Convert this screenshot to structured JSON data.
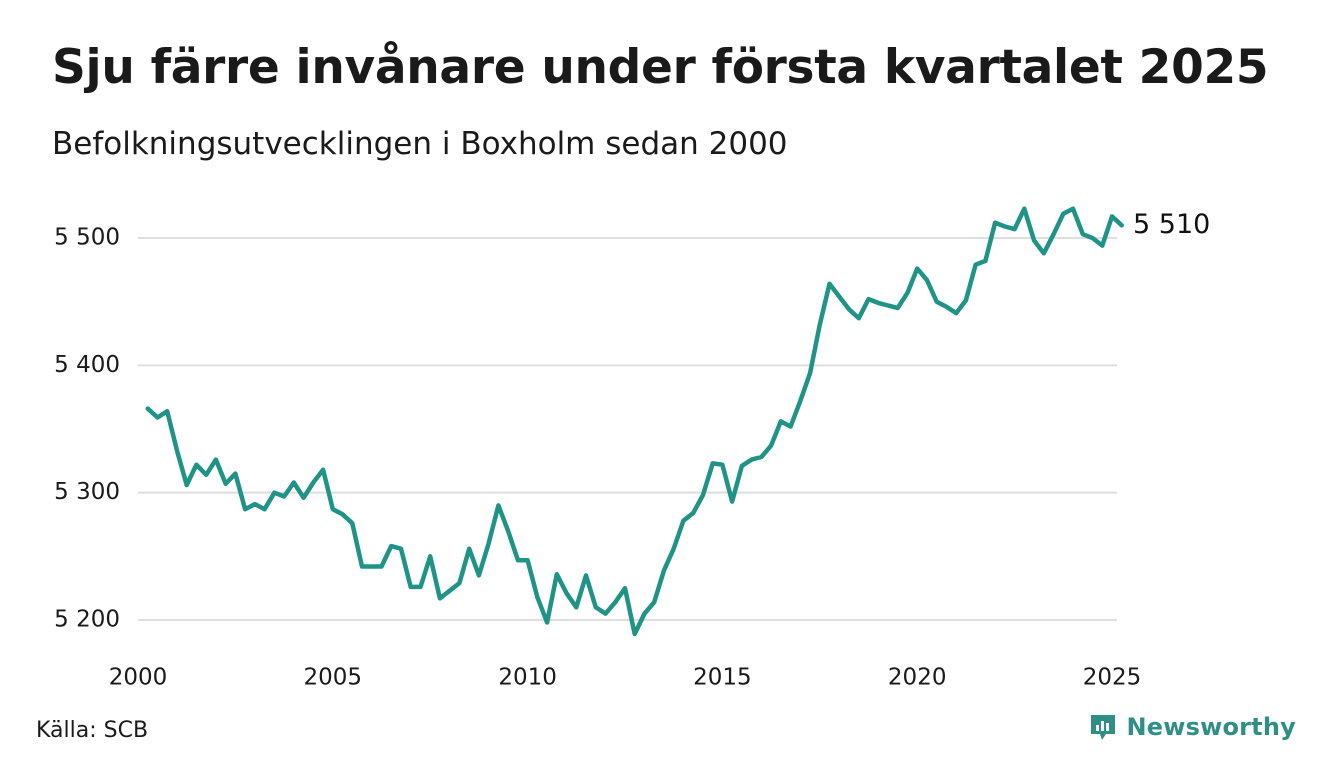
{
  "header": {
    "title": "Sju färre invånare under första kvartalet 2025",
    "subtitle": "Befolkningsutvecklingen i Boxholm sedan 2000"
  },
  "footer": {
    "source": "Källa: SCB",
    "brand": "Newsworthy"
  },
  "colors": {
    "line": "#1f9486",
    "grid": "#dedede",
    "brand": "#2f8f85"
  },
  "chart_data": {
    "type": "line",
    "title": "Sju färre invånare under första kvartalet 2025",
    "subtitle": "Befolkningsutvecklingen i Boxholm sedan 2000",
    "xlabel": "",
    "ylabel": "",
    "xlim": [
      2000,
      2025
    ],
    "ylim": [
      5180,
      5530
    ],
    "grid": true,
    "x_ticks": [
      2000,
      2005,
      2010,
      2015,
      2020,
      2025
    ],
    "x_tick_labels": [
      "2000",
      "2005",
      "2010",
      "2015",
      "2020",
      "2025"
    ],
    "y_ticks": [
      5200,
      5300,
      5400,
      5500
    ],
    "y_tick_labels": [
      "5 200",
      "5 300",
      "5 400",
      "5 500"
    ],
    "end_label": "5 510",
    "series": [
      {
        "x": [
          2000.25,
          2000.5,
          2000.75,
          2001,
          2001.25,
          2001.5,
          2001.75,
          2002,
          2002.25,
          2002.5,
          2002.75,
          2003,
          2003.25,
          2003.5,
          2003.75,
          2004,
          2004.25,
          2004.5,
          2004.75,
          2005,
          2005.25,
          2005.5,
          2005.75,
          2006,
          2006.25,
          2006.5,
          2006.75,
          2007,
          2007.25,
          2007.5,
          2007.75,
          2008,
          2008.25,
          2008.5,
          2008.75,
          2009,
          2009.25,
          2009.5,
          2009.75,
          2010,
          2010.25,
          2010.5,
          2010.75,
          2011,
          2011.25,
          2011.5,
          2011.75,
          2012,
          2012.25,
          2012.5,
          2012.75,
          2013,
          2013.25,
          2013.5,
          2013.75,
          2014,
          2014.25,
          2014.5,
          2014.75,
          2015,
          2015.25,
          2015.5,
          2015.75,
          2016,
          2016.25,
          2016.5,
          2016.75,
          2017,
          2017.25,
          2017.5,
          2017.75,
          2018,
          2018.25,
          2018.5,
          2018.75,
          2019,
          2019.25,
          2019.5,
          2019.75,
          2020,
          2020.25,
          2020.5,
          2020.75,
          2021,
          2021.25,
          2021.5,
          2021.75,
          2022,
          2022.25,
          2022.5,
          2022.75,
          2023,
          2023.25,
          2023.5,
          2023.75,
          2024,
          2024.25,
          2024.5,
          2024.75,
          2025,
          2025.25
        ],
        "values": [
          5366,
          5359,
          5364,
          5333,
          5306,
          5322,
          5314,
          5326,
          5307,
          5315,
          5287,
          5291,
          5287,
          5300,
          5297,
          5308,
          5296,
          5308,
          5318,
          5287,
          5283,
          5276,
          5242,
          5242,
          5242,
          5258,
          5256,
          5226,
          5226,
          5250,
          5217,
          5223,
          5229,
          5256,
          5235,
          5260,
          5290,
          5270,
          5247,
          5247,
          5218,
          5198,
          5236,
          5221,
          5210,
          5235,
          5210,
          5205,
          5214,
          5225,
          5189,
          5205,
          5214,
          5239,
          5256,
          5278,
          5284,
          5298,
          5323,
          5322,
          5293,
          5321,
          5326,
          5328,
          5337,
          5356,
          5352,
          5372,
          5394,
          5432,
          5464,
          5454,
          5444,
          5437,
          5452,
          5449,
          5447,
          5445,
          5457,
          5476,
          5467,
          5450,
          5446,
          5441,
          5451,
          5479,
          5482,
          5512,
          5509,
          5507,
          5523,
          5498,
          5488,
          5503,
          5519,
          5523,
          5503,
          5500,
          5494,
          5517,
          5510
        ]
      }
    ]
  }
}
